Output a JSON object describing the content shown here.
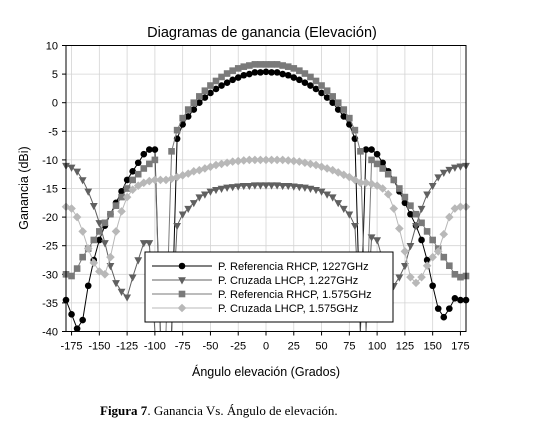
{
  "caption": {
    "label": "Figura 7",
    "text": ". Ganancia Vs. Ángulo de elevación."
  },
  "chart_data": {
    "type": "line",
    "title": "Diagramas de ganancia (Elevación)",
    "xlabel": "Ángulo elevación (Grados)",
    "ylabel": "Ganancia (dBi)",
    "xlim": [
      -180,
      180
    ],
    "ylim": [
      -40,
      10
    ],
    "xticks": [
      -175,
      -150,
      -125,
      -100,
      -75,
      -50,
      -25,
      0,
      25,
      50,
      75,
      100,
      125,
      150,
      175
    ],
    "yticks": [
      10,
      5,
      0,
      -5,
      -10,
      -15,
      -20,
      -25,
      -30,
      -35,
      -40
    ],
    "grid": true,
    "legend_position": "bottom-left",
    "series": [
      {
        "name": "P. Referencia RHCP, 1227GHz",
        "marker": "circle",
        "color": "#000000",
        "x": [
          -180,
          -175,
          -170,
          -165,
          -160,
          -155,
          -150,
          -145,
          -140,
          -135,
          -130,
          -125,
          -120,
          -115,
          -110,
          -105,
          -100,
          -95,
          -90,
          -85,
          -80,
          -75,
          -70,
          -65,
          -60,
          -55,
          -50,
          -45,
          -40,
          -35,
          -30,
          -25,
          -20,
          -15,
          -10,
          -5,
          0,
          5,
          10,
          15,
          20,
          25,
          30,
          35,
          40,
          45,
          50,
          55,
          60,
          65,
          70,
          75,
          80,
          85,
          90,
          95,
          100,
          105,
          110,
          115,
          120,
          125,
          130,
          135,
          140,
          145,
          150,
          155,
          160,
          165,
          170,
          175,
          180
        ],
        "y": [
          -34.5,
          -37,
          -39.5,
          -38,
          -32,
          -27.5,
          -24,
          -21.5,
          -19.5,
          -17.5,
          -15.5,
          -13.5,
          -12,
          -10.5,
          -9,
          -8.2,
          -8.2,
          -40,
          -40,
          -40,
          -6.3,
          -3.8,
          -2.4,
          -1.2,
          0,
          0.9,
          1.7,
          2.4,
          3,
          3.5,
          4,
          4.4,
          4.8,
          5,
          5.3,
          5.3,
          5.4,
          5.3,
          5.3,
          5,
          4.8,
          4.4,
          4,
          3.5,
          3,
          2.4,
          1.7,
          0.9,
          0,
          -1.2,
          -2.4,
          -3.8,
          -6.3,
          -40,
          -8.2,
          -8.2,
          -9,
          -10.5,
          -12,
          -13.5,
          -15.5,
          -17.5,
          -19.5,
          -21.5,
          -24,
          -27.5,
          -32,
          -36,
          -37.5,
          -36,
          -34.2,
          -34.5,
          -34.5
        ]
      },
      {
        "name": "P. Cruzada LHCP, 1.227GHz",
        "marker": "triangle-down",
        "color": "#606060",
        "x": [
          -180,
          -175,
          -170,
          -165,
          -160,
          -155,
          -150,
          -145,
          -140,
          -135,
          -130,
          -125,
          -120,
          -115,
          -110,
          -105,
          -100,
          -95,
          -90,
          -85,
          -80,
          -75,
          -70,
          -65,
          -60,
          -55,
          -50,
          -45,
          -40,
          -35,
          -30,
          -25,
          -20,
          -15,
          -10,
          -5,
          0,
          5,
          10,
          15,
          20,
          25,
          30,
          35,
          40,
          45,
          50,
          55,
          60,
          65,
          70,
          75,
          80,
          85,
          90,
          95,
          100,
          105,
          110,
          115,
          120,
          125,
          130,
          135,
          140,
          145,
          150,
          155,
          160,
          165,
          170,
          175,
          180
        ],
        "y": [
          -11,
          -11.3,
          -12,
          -13.5,
          -15.5,
          -18,
          -21,
          -24.5,
          -28.5,
          -31.5,
          -33,
          -34,
          -30.5,
          -27.5,
          -24.5,
          -24.5,
          -40,
          -40,
          -40,
          -40,
          -21.5,
          -19.5,
          -18.5,
          -17.5,
          -16.5,
          -16,
          -15.5,
          -15.2,
          -15,
          -14.8,
          -14.7,
          -14.6,
          -14.5,
          -14.5,
          -14.4,
          -14.4,
          -14.4,
          -14.4,
          -14.4,
          -14.5,
          -14.5,
          -14.6,
          -14.7,
          -14.8,
          -15,
          -15.2,
          -15.5,
          -16,
          -16.5,
          -17.5,
          -18.5,
          -19.5,
          -21.5,
          -40,
          -40,
          -23.5,
          -24,
          -27.5,
          -31,
          -32,
          -30.5,
          -28.5,
          -25,
          -21.5,
          -18.5,
          -16,
          -14.5,
          -13,
          -12.2,
          -11.7,
          -11.3,
          -11.1,
          -11
        ]
      },
      {
        "name": "P. Referencia RHCP, 1.575GHz",
        "marker": "square",
        "color": "#7a7a7a",
        "x": [
          -180,
          -175,
          -170,
          -165,
          -160,
          -155,
          -150,
          -145,
          -140,
          -135,
          -130,
          -125,
          -120,
          -115,
          -110,
          -105,
          -100,
          -95,
          -90,
          -85,
          -80,
          -75,
          -70,
          -65,
          -60,
          -55,
          -50,
          -45,
          -40,
          -35,
          -30,
          -25,
          -20,
          -15,
          -10,
          -5,
          0,
          5,
          10,
          15,
          20,
          25,
          30,
          35,
          40,
          45,
          50,
          55,
          60,
          65,
          70,
          75,
          80,
          85,
          90,
          95,
          100,
          105,
          110,
          115,
          120,
          125,
          130,
          135,
          140,
          145,
          150,
          155,
          160,
          165,
          170,
          175,
          180
        ],
        "y": [
          -30,
          -30.3,
          -29,
          -27,
          -25.5,
          -24,
          -22.5,
          -21,
          -19.5,
          -18,
          -16.5,
          -15,
          -13.5,
          -12.5,
          -11.5,
          -10.7,
          -10,
          -40,
          -40,
          -8.5,
          -4.8,
          -2.7,
          -1.2,
          0,
          1.1,
          2.1,
          3,
          3.8,
          4.5,
          5.1,
          5.6,
          6,
          6.3,
          6.5,
          6.7,
          6.7,
          6.7,
          6.7,
          6.7,
          6.5,
          6.3,
          6,
          5.6,
          5.1,
          4.5,
          3.8,
          3,
          2.1,
          1.1,
          0,
          -1.2,
          -2.7,
          -4.8,
          -8.5,
          -40,
          -10,
          -10.7,
          -11.5,
          -12.5,
          -13.5,
          -15,
          -16.5,
          -18,
          -19.5,
          -21,
          -22.5,
          -24,
          -25.5,
          -27,
          -28.5,
          -30,
          -30.5,
          -30.3
        ]
      },
      {
        "name": "P. Cruzada LHCP, 1.575GHz",
        "marker": "diamond",
        "color": "#b8b8b8",
        "x": [
          -180,
          -175,
          -170,
          -165,
          -160,
          -155,
          -150,
          -145,
          -140,
          -135,
          -130,
          -125,
          -120,
          -115,
          -110,
          -105,
          -100,
          -95,
          -90,
          -85,
          -80,
          -75,
          -70,
          -65,
          -60,
          -55,
          -50,
          -45,
          -40,
          -35,
          -30,
          -25,
          -20,
          -15,
          -10,
          -5,
          0,
          5,
          10,
          15,
          20,
          25,
          30,
          35,
          40,
          45,
          50,
          55,
          60,
          65,
          70,
          75,
          80,
          85,
          90,
          95,
          100,
          105,
          110,
          115,
          120,
          125,
          130,
          135,
          140,
          145,
          150,
          155,
          160,
          165,
          170,
          175,
          180
        ],
        "y": [
          -18.2,
          -18.5,
          -20,
          -22.5,
          -25.5,
          -28,
          -29.5,
          -30,
          -27,
          -22.5,
          -19,
          -16.5,
          -15.2,
          -14.5,
          -14,
          -13.7,
          -13.5,
          -13.5,
          -13.5,
          -13.3,
          -13,
          -12.7,
          -12.4,
          -12,
          -11.8,
          -11.5,
          -11.2,
          -10.9,
          -10.7,
          -10.5,
          -10.3,
          -10.2,
          -10.1,
          -10,
          -10,
          -10,
          -10,
          -10,
          -10,
          -10,
          -10.1,
          -10.2,
          -10.3,
          -10.5,
          -10.7,
          -10.9,
          -11.2,
          -11.5,
          -11.8,
          -12.2,
          -12.6,
          -13,
          -13.5,
          -14,
          -14,
          -14.2,
          -14.5,
          -15,
          -16,
          -18.5,
          -22,
          -26,
          -30.5,
          -31.5,
          -30.5,
          -28.5,
          -27,
          -26,
          -23,
          -20,
          -18.5,
          -18.2,
          -18.2
        ]
      }
    ]
  }
}
